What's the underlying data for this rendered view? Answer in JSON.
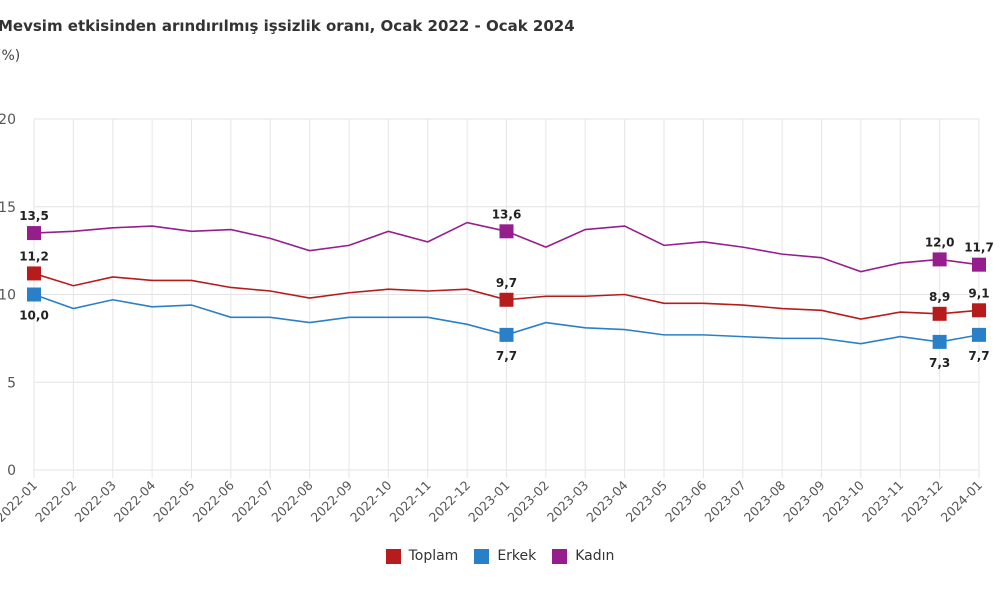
{
  "header": {
    "title": "Mevsim etkisinden arındırılmış işsizlik oranı, Ocak 2022 - Ocak 2024",
    "subtitle": "(%)"
  },
  "chart_data": {
    "type": "line",
    "title": "Mevsim etkisinden arındırılmış işsizlik oranı, Ocak 2022 - Ocak 2024",
    "subtitle": "(%)",
    "xlabel": "",
    "ylabel": "(%)",
    "ylim": [
      0,
      20
    ],
    "yticks": [
      0,
      5,
      10,
      15,
      20
    ],
    "grid": true,
    "legend_position": "bottom-center",
    "x": [
      "2022-01",
      "2022-02",
      "2022-03",
      "2022-04",
      "2022-05",
      "2022-06",
      "2022-07",
      "2022-08",
      "2022-09",
      "2022-10",
      "2022-11",
      "2022-12",
      "2023-01",
      "2023-02",
      "2023-03",
      "2023-04",
      "2023-05",
      "2023-06",
      "2023-07",
      "2023-08",
      "2023-09",
      "2023-10",
      "2023-11",
      "2023-12",
      "2024-01"
    ],
    "labeled_points": [
      0,
      12,
      23,
      24
    ],
    "series": [
      {
        "name": "Toplam",
        "color": "#b71c1c",
        "values": [
          11.2,
          10.5,
          11.0,
          10.8,
          10.8,
          10.4,
          10.2,
          9.8,
          10.1,
          10.3,
          10.2,
          10.3,
          9.7,
          9.9,
          9.9,
          10.0,
          9.5,
          9.5,
          9.4,
          9.2,
          9.1,
          8.6,
          9.0,
          8.9,
          9.1
        ],
        "point_labels": {
          "0": "11,2",
          "12": "9,7",
          "23": "8,9",
          "24": "9,1"
        },
        "label_side": "above"
      },
      {
        "name": "Erkek",
        "color": "#2a80c8",
        "values": [
          10.0,
          9.2,
          9.7,
          9.3,
          9.4,
          8.7,
          8.7,
          8.4,
          8.7,
          8.7,
          8.7,
          8.3,
          7.7,
          8.4,
          8.1,
          8.0,
          7.7,
          7.7,
          7.6,
          7.5,
          7.5,
          7.2,
          7.6,
          7.3,
          7.7
        ],
        "point_labels": {
          "0": "10,0",
          "12": "7,7",
          "23": "7,3",
          "24": "7,7"
        },
        "label_side": "below"
      },
      {
        "name": "Kadın",
        "color": "#961e8c",
        "values": [
          13.5,
          13.6,
          13.8,
          13.9,
          13.6,
          13.7,
          13.2,
          12.5,
          12.8,
          13.6,
          13.0,
          14.1,
          13.6,
          12.7,
          13.7,
          13.9,
          12.8,
          13.0,
          12.7,
          12.3,
          12.1,
          11.3,
          11.8,
          12.0,
          11.7
        ],
        "point_labels": {
          "0": "13,5",
          "12": "13,6",
          "23": "12,0",
          "24": "11,7"
        },
        "label_side": "above"
      }
    ]
  }
}
